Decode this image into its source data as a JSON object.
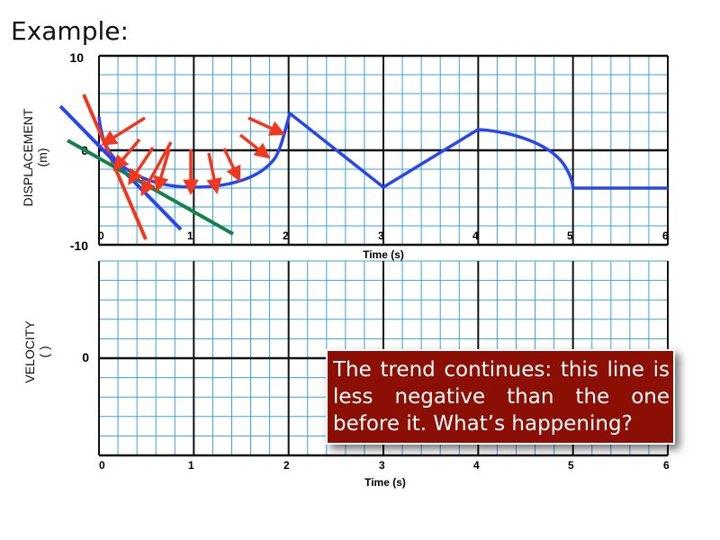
{
  "title": "Example:",
  "displacement_graph": {
    "ylabel": "DISPLACEMENT",
    "yunit": "(m)",
    "ymax_label": "10",
    "ymid_label": "0",
    "ymin_label": "-10",
    "xlabel": "Time (s)",
    "xticks": [
      "0",
      "1",
      "2",
      "3",
      "4",
      "5",
      "6"
    ]
  },
  "velocity_graph": {
    "ylabel": "VELOCITY",
    "yunit": "(     )",
    "ymid_label": "0",
    "xlabel": "Time (s)",
    "xticks": [
      "0",
      "1",
      "2",
      "3",
      "4",
      "5",
      "6"
    ]
  },
  "callout": {
    "text": "The trend continues: this line is less negative than the one before it. What’s happening?"
  },
  "colors": {
    "grid": "#3aa3d8",
    "curve": "#2745f0",
    "arrows": "#f0381f",
    "tangent_red": "#f0381f",
    "tangent_blue": "#2745f0",
    "tangent_green": "#11834a",
    "callout_bg": "#8b0f05"
  },
  "chart_data": {
    "type": "line",
    "x": [
      0,
      1,
      2,
      3,
      4,
      5,
      6
    ],
    "xlabel": "Time (s)",
    "ylabel": "DISPLACEMENT (m)",
    "xlim": [
      0,
      6
    ],
    "ylim": [
      -10,
      10
    ],
    "series": [
      {
        "points": [
          [
            0.0,
            4.0
          ],
          [
            0.15,
            0.3
          ],
          [
            0.4,
            -1.8
          ],
          [
            0.7,
            -3.1
          ],
          [
            1.0,
            -3.8
          ],
          [
            1.3,
            -3.6
          ],
          [
            1.6,
            -2.6
          ],
          [
            1.85,
            -0.6
          ],
          [
            2.0,
            4.0
          ],
          [
            3.0,
            -3.8
          ],
          [
            4.0,
            2.3
          ],
          [
            4.5,
            1.6
          ],
          [
            4.8,
            0.3
          ],
          [
            4.95,
            -2.0
          ],
          [
            5.0,
            -3.8
          ],
          [
            6.0,
            -3.8
          ]
        ]
      }
    ],
    "tangent_lines": [
      {
        "color": "red",
        "x": [
          -0.15,
          0.5
        ],
        "y": [
          6.0,
          -9.0
        ]
      },
      {
        "color": "blue",
        "x": [
          -0.4,
          0.85
        ],
        "y": [
          4.7,
          -8.0
        ]
      },
      {
        "color": "green",
        "x": [
          -0.35,
          1.4
        ],
        "y": [
          1.2,
          -8.8
        ]
      }
    ]
  }
}
